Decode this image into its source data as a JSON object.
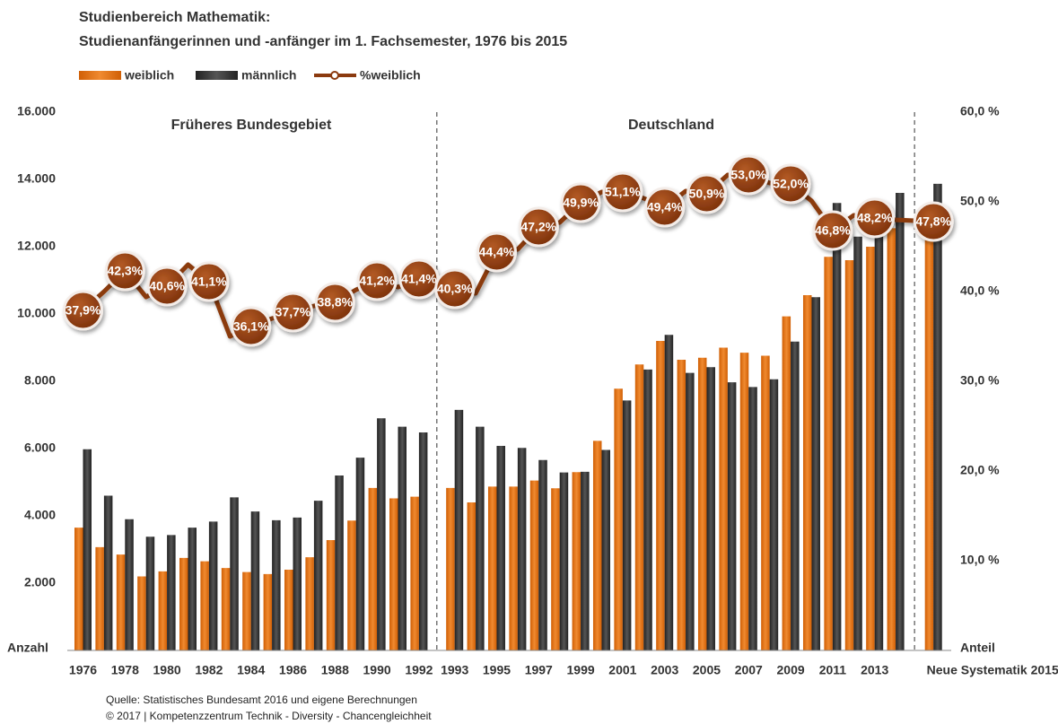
{
  "chart_data": {
    "type": "bar",
    "title": "Studienbereich Mathematik:",
    "subtitle": "Studienanfängerinnen und -anfänger im 1. Fachsemester, 1976 bis 2015",
    "ylabel": "Anzahl",
    "y2label": "Anteil",
    "annotations": [
      "Früheres Bundesgebiet",
      "Deutschland"
    ],
    "source": [
      "Quelle: Statistisches Bundesamt 2016 und eigene Berechnungen",
      "© 2017 | Kompetenzzentrum Technik - Diversity - Chancengleichheit"
    ],
    "categories": [
      "1976",
      null,
      "1978",
      null,
      "1980",
      null,
      "1982",
      null,
      "1984",
      null,
      "1986",
      null,
      "1988",
      null,
      "1990",
      null,
      "1992",
      "1993",
      null,
      "1995",
      null,
      "1997",
      null,
      "1999",
      null,
      "2001",
      null,
      "2003",
      null,
      "2005",
      null,
      "2007",
      null,
      "2009",
      null,
      "2011",
      null,
      "2013",
      null,
      "Neue Systematik 2015"
    ],
    "series": [
      {
        "name": "weiblich",
        "color": "#e36c0a",
        "values": [
          3650,
          3070,
          2850,
          2200,
          2350,
          2750,
          2650,
          2450,
          2330,
          2270,
          2400,
          2770,
          3280,
          3860,
          4830,
          4520,
          4570,
          4830,
          4400,
          4870,
          4870,
          5050,
          4820,
          5300,
          6230,
          7780,
          8500,
          9200,
          8640,
          8700,
          9000,
          8850,
          8760,
          9930,
          10560,
          11700,
          11600,
          12000,
          12550,
          12700
        ]
      },
      {
        "name": "männlich",
        "color": "#3a3a3a",
        "values": [
          5980,
          4600,
          3900,
          3380,
          3430,
          3650,
          3830,
          4550,
          4130,
          3870,
          3950,
          4450,
          5200,
          5730,
          6900,
          6650,
          6480,
          7150,
          6650,
          6080,
          6020,
          5660,
          5290,
          5310,
          5960,
          7430,
          8350,
          9380,
          8250,
          8420,
          7970,
          7830,
          8060,
          9180,
          10500,
          13300,
          12300,
          12900,
          13600,
          13870
        ]
      },
      {
        "name": "%weiblich",
        "color": "#8b3a0f",
        "axis": "y2",
        "type": "line",
        "values": [
          37.9,
          40.0,
          42.3,
          39.4,
          40.6,
          43.0,
          41.1,
          35.0,
          36.1,
          37.0,
          37.7,
          38.4,
          38.8,
          40.2,
          41.2,
          40.5,
          41.4,
          40.3,
          39.8,
          44.4,
          44.7,
          47.2,
          47.7,
          49.9,
          51.1,
          51.1,
          50.4,
          49.4,
          51.2,
          50.9,
          53.0,
          53.0,
          52.1,
          52.0,
          50.1,
          46.8,
          48.5,
          48.2,
          48.0,
          47.8
        ],
        "value_labels": [
          "37,9%",
          null,
          "42,3%",
          null,
          "40,6%",
          null,
          "41,1%",
          null,
          "36,1%",
          null,
          "37,7%",
          null,
          "38,8%",
          null,
          "41,2%",
          null,
          "41,4%",
          "40,3%",
          null,
          "44,4%",
          null,
          "47,2%",
          null,
          "49,9%",
          null,
          "51,1%",
          null,
          "49,4%",
          null,
          "50,9%",
          null,
          "53,0%",
          null,
          "52,0%",
          null,
          "46,8%",
          null,
          "48,2%",
          null,
          "47,8%"
        ]
      }
    ],
    "ylim": [
      0,
      16000
    ],
    "yticks": [
      {
        "value": 2000,
        "label": "2.000"
      },
      {
        "value": 4000,
        "label": "4.000"
      },
      {
        "value": 6000,
        "label": "6.000"
      },
      {
        "value": 8000,
        "label": "8.000"
      },
      {
        "value": 10000,
        "label": "10.000"
      },
      {
        "value": 12000,
        "label": "12.000"
      },
      {
        "value": 14000,
        "label": "14.000"
      },
      {
        "value": 16000,
        "label": "16.000"
      }
    ],
    "y2lim": [
      0,
      60
    ],
    "y2ticks": [
      {
        "value": 10,
        "label": "10,0 %"
      },
      {
        "value": 20,
        "label": "20,0 %"
      },
      {
        "value": 30,
        "label": "30,0 %"
      },
      {
        "value": 40,
        "label": "40,0 %"
      },
      {
        "value": 50,
        "label": "50,0 %"
      },
      {
        "value": 60,
        "label": "60,0 %"
      }
    ],
    "grid": false,
    "legend": "top"
  }
}
